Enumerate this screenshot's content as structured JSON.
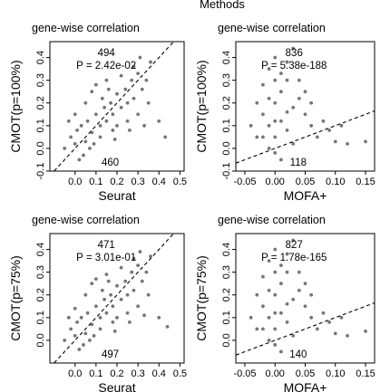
{
  "figure": {
    "title": "Methods"
  },
  "chart_data": [
    {
      "type": "scatter",
      "title": "gene-wise correlation",
      "xlabel": "Seurat",
      "ylabel": "CMOT(p=100%)",
      "xlim": [
        -0.12,
        0.52
      ],
      "ylim": [
        -0.1,
        0.47
      ],
      "xticks": [
        "0.0",
        "0.1",
        "0.2",
        "0.3",
        "0.4",
        "0.5"
      ],
      "xtick_values": [
        0.0,
        0.1,
        0.2,
        0.3,
        0.4,
        0.5
      ],
      "yticks": [
        "-0.1",
        "0.0",
        "0.1",
        "0.2",
        "0.3",
        "0.4"
      ],
      "ytick_values": [
        -0.1,
        0.0,
        0.1,
        0.2,
        0.3,
        0.4
      ],
      "count_above": "494",
      "p_value": "P = 2.42e-02",
      "count_below": "460",
      "reference_line": {
        "slope": 1,
        "intercept": 0
      },
      "points": [
        [
          -0.02,
          0.05
        ],
        [
          0.0,
          0.02
        ],
        [
          0.01,
          0.08
        ],
        [
          0.03,
          0.1
        ],
        [
          0.05,
          0.03
        ],
        [
          0.06,
          0.12
        ],
        [
          0.08,
          0.07
        ],
        [
          0.1,
          0.15
        ],
        [
          0.12,
          0.1
        ],
        [
          0.14,
          0.18
        ],
        [
          0.15,
          0.12
        ],
        [
          0.17,
          0.2
        ],
        [
          0.18,
          0.15
        ],
        [
          0.2,
          0.24
        ],
        [
          0.22,
          0.18
        ],
        [
          0.24,
          0.26
        ],
        [
          0.25,
          0.2
        ],
        [
          0.27,
          0.3
        ],
        [
          0.28,
          0.22
        ],
        [
          0.3,
          0.33
        ],
        [
          0.32,
          0.26
        ],
        [
          0.34,
          0.3
        ],
        [
          0.36,
          0.38
        ],
        [
          0.05,
          0.2
        ],
        [
          0.08,
          0.25
        ],
        [
          0.1,
          0.28
        ],
        [
          0.0,
          0.15
        ],
        [
          -0.03,
          0.12
        ],
        [
          0.15,
          0.3
        ],
        [
          0.12,
          0.05
        ],
        [
          0.18,
          0.08
        ],
        [
          0.2,
          0.1
        ],
        [
          0.25,
          0.12
        ],
        [
          0.3,
          0.15
        ],
        [
          0.35,
          0.2
        ],
        [
          0.22,
          0.32
        ],
        [
          0.4,
          0.12
        ],
        [
          0.43,
          0.05
        ],
        [
          0.02,
          -0.05
        ],
        [
          0.04,
          -0.03
        ],
        [
          -0.05,
          0.0
        ],
        [
          0.07,
          0.0
        ],
        [
          0.09,
          0.02
        ],
        [
          0.13,
          0.22
        ],
        [
          0.16,
          0.26
        ],
        [
          0.28,
          0.36
        ],
        [
          0.31,
          0.4
        ],
        [
          0.19,
          0.04
        ],
        [
          0.26,
          0.08
        ],
        [
          0.33,
          0.1
        ]
      ]
    },
    {
      "type": "scatter",
      "title": "gene-wise correlation",
      "xlabel": "MOFA+",
      "ylabel": "CMOT(p=100%)",
      "xlim": [
        -0.065,
        0.165
      ],
      "ylim": [
        -0.1,
        0.47
      ],
      "xticks": [
        "-0.05",
        "0.00",
        "0.05",
        "0.10",
        "0.15"
      ],
      "xtick_values": [
        -0.05,
        0.0,
        0.05,
        0.1,
        0.15
      ],
      "yticks": [
        "-0.1",
        "0.0",
        "0.1",
        "0.2",
        "0.3",
        "0.4"
      ],
      "ytick_values": [
        -0.1,
        0.0,
        0.1,
        0.2,
        0.3,
        0.4
      ],
      "count_above": "836",
      "p_value": "P = 5.38e-188",
      "count_below": "118",
      "reference_line": {
        "slope": 1,
        "intercept": 0
      },
      "points": [
        [
          -0.03,
          0.05
        ],
        [
          -0.02,
          0.15
        ],
        [
          -0.01,
          0.1
        ],
        [
          0.0,
          0.2
        ],
        [
          0.0,
          0.05
        ],
        [
          0.01,
          0.25
        ],
        [
          0.01,
          0.12
        ],
        [
          0.02,
          0.3
        ],
        [
          0.02,
          0.08
        ],
        [
          -0.01,
          0.35
        ],
        [
          0.0,
          0.4
        ],
        [
          0.03,
          0.18
        ],
        [
          0.03,
          0.02
        ],
        [
          0.04,
          0.22
        ],
        [
          -0.02,
          0.28
        ],
        [
          -0.04,
          0.1
        ],
        [
          0.0,
          -0.02
        ],
        [
          -0.01,
          0.0
        ],
        [
          0.01,
          -0.05
        ],
        [
          0.05,
          0.15
        ],
        [
          0.06,
          0.1
        ],
        [
          0.07,
          0.05
        ],
        [
          0.08,
          0.12
        ],
        [
          0.1,
          0.03
        ],
        [
          0.12,
          0.02
        ],
        [
          0.15,
          0.03
        ],
        [
          0.02,
          0.38
        ],
        [
          0.03,
          0.44
        ],
        [
          -0.03,
          0.2
        ],
        [
          0.01,
          0.33
        ],
        [
          0.04,
          0.3
        ],
        [
          -0.02,
          0.05
        ],
        [
          0.0,
          0.12
        ],
        [
          0.02,
          0.16
        ],
        [
          -0.01,
          0.22
        ],
        [
          0.05,
          0.25
        ],
        [
          0.06,
          0.2
        ],
        [
          0.09,
          0.08
        ],
        [
          0.11,
          0.1
        ],
        [
          0.0,
          0.3
        ]
      ]
    },
    {
      "type": "scatter",
      "title": "gene-wise correlation",
      "xlabel": "Seurat",
      "ylabel": "CMOT(p=75%)",
      "xlim": [
        -0.12,
        0.52
      ],
      "ylim": [
        -0.1,
        0.47
      ],
      "xticks": [
        "0.0",
        "0.1",
        "0.2",
        "0.3",
        "0.4",
        "0.5"
      ],
      "xtick_values": [
        0.0,
        0.1,
        0.2,
        0.3,
        0.4,
        0.5
      ],
      "yticks": [
        "0.0",
        "0.1",
        "0.2",
        "0.3",
        "0.4"
      ],
      "ytick_values": [
        0.0,
        0.1,
        0.2,
        0.3,
        0.4
      ],
      "count_above": "471",
      "p_value": "P = 3.01e-01",
      "count_below": "497",
      "reference_line": {
        "slope": 1,
        "intercept": 0
      },
      "points": [
        [
          -0.02,
          0.05
        ],
        [
          0.0,
          0.02
        ],
        [
          0.01,
          0.08
        ],
        [
          0.03,
          0.1
        ],
        [
          0.05,
          0.03
        ],
        [
          0.06,
          0.12
        ],
        [
          0.08,
          0.07
        ],
        [
          0.1,
          0.15
        ],
        [
          0.12,
          0.1
        ],
        [
          0.14,
          0.18
        ],
        [
          0.15,
          0.12
        ],
        [
          0.17,
          0.2
        ],
        [
          0.18,
          0.15
        ],
        [
          0.2,
          0.24
        ],
        [
          0.22,
          0.18
        ],
        [
          0.24,
          0.26
        ],
        [
          0.25,
          0.2
        ],
        [
          0.27,
          0.3
        ],
        [
          0.28,
          0.22
        ],
        [
          0.3,
          0.33
        ],
        [
          0.32,
          0.26
        ],
        [
          0.34,
          0.3
        ],
        [
          0.36,
          0.37
        ],
        [
          0.05,
          0.2
        ],
        [
          0.08,
          0.25
        ],
        [
          0.1,
          0.27
        ],
        [
          0.0,
          0.14
        ],
        [
          -0.03,
          0.1
        ],
        [
          0.15,
          0.29
        ],
        [
          0.12,
          0.05
        ],
        [
          0.18,
          0.08
        ],
        [
          0.2,
          0.1
        ],
        [
          0.25,
          0.12
        ],
        [
          0.3,
          0.15
        ],
        [
          0.35,
          0.2
        ],
        [
          0.22,
          0.32
        ],
        [
          0.4,
          0.1
        ],
        [
          0.44,
          0.06
        ],
        [
          0.02,
          -0.04
        ],
        [
          0.04,
          -0.02
        ],
        [
          -0.05,
          0.0
        ],
        [
          0.07,
          0.0
        ],
        [
          0.09,
          0.02
        ],
        [
          0.13,
          0.22
        ],
        [
          0.16,
          0.26
        ],
        [
          0.28,
          0.36
        ],
        [
          0.31,
          0.39
        ],
        [
          0.19,
          0.04
        ],
        [
          0.26,
          0.08
        ],
        [
          0.33,
          0.11
        ]
      ]
    },
    {
      "type": "scatter",
      "title": "gene-wise correlation",
      "xlabel": "MOFA+",
      "ylabel": "CMOT(p=75%)",
      "xlim": [
        -0.065,
        0.165
      ],
      "ylim": [
        -0.1,
        0.47
      ],
      "xticks": [
        "-0.05",
        "0.00",
        "0.05",
        "0.10",
        "0.15"
      ],
      "xtick_values": [
        -0.05,
        0.0,
        0.05,
        0.1,
        0.15
      ],
      "yticks": [
        "0.0",
        "0.1",
        "0.2",
        "0.3",
        "0.4"
      ],
      "ytick_values": [
        0.0,
        0.1,
        0.2,
        0.3,
        0.4
      ],
      "count_above": "827",
      "p_value": "P = 1.78e-165",
      "count_below": "140",
      "reference_line": {
        "slope": 1,
        "intercept": 0
      },
      "points": [
        [
          -0.03,
          0.05
        ],
        [
          -0.02,
          0.15
        ],
        [
          -0.01,
          0.1
        ],
        [
          0.0,
          0.2
        ],
        [
          0.0,
          0.05
        ],
        [
          0.01,
          0.25
        ],
        [
          0.01,
          0.12
        ],
        [
          0.02,
          0.3
        ],
        [
          0.02,
          0.08
        ],
        [
          -0.01,
          0.35
        ],
        [
          0.0,
          0.4
        ],
        [
          0.03,
          0.18
        ],
        [
          0.03,
          0.02
        ],
        [
          0.04,
          0.22
        ],
        [
          -0.02,
          0.28
        ],
        [
          -0.04,
          0.1
        ],
        [
          0.0,
          -0.02
        ],
        [
          -0.01,
          0.0
        ],
        [
          0.01,
          -0.05
        ],
        [
          0.05,
          0.15
        ],
        [
          0.06,
          0.1
        ],
        [
          0.07,
          0.05
        ],
        [
          0.08,
          0.12
        ],
        [
          0.1,
          0.03
        ],
        [
          0.12,
          0.02
        ],
        [
          0.15,
          0.04
        ],
        [
          0.02,
          0.38
        ],
        [
          0.03,
          0.44
        ],
        [
          -0.03,
          0.2
        ],
        [
          0.01,
          0.33
        ],
        [
          0.04,
          0.3
        ],
        [
          -0.02,
          0.05
        ],
        [
          0.0,
          0.12
        ],
        [
          0.02,
          0.16
        ],
        [
          -0.01,
          0.22
        ],
        [
          0.05,
          0.25
        ],
        [
          0.06,
          0.2
        ],
        [
          0.09,
          0.08
        ],
        [
          0.11,
          0.1
        ],
        [
          0.0,
          0.3
        ]
      ]
    }
  ]
}
